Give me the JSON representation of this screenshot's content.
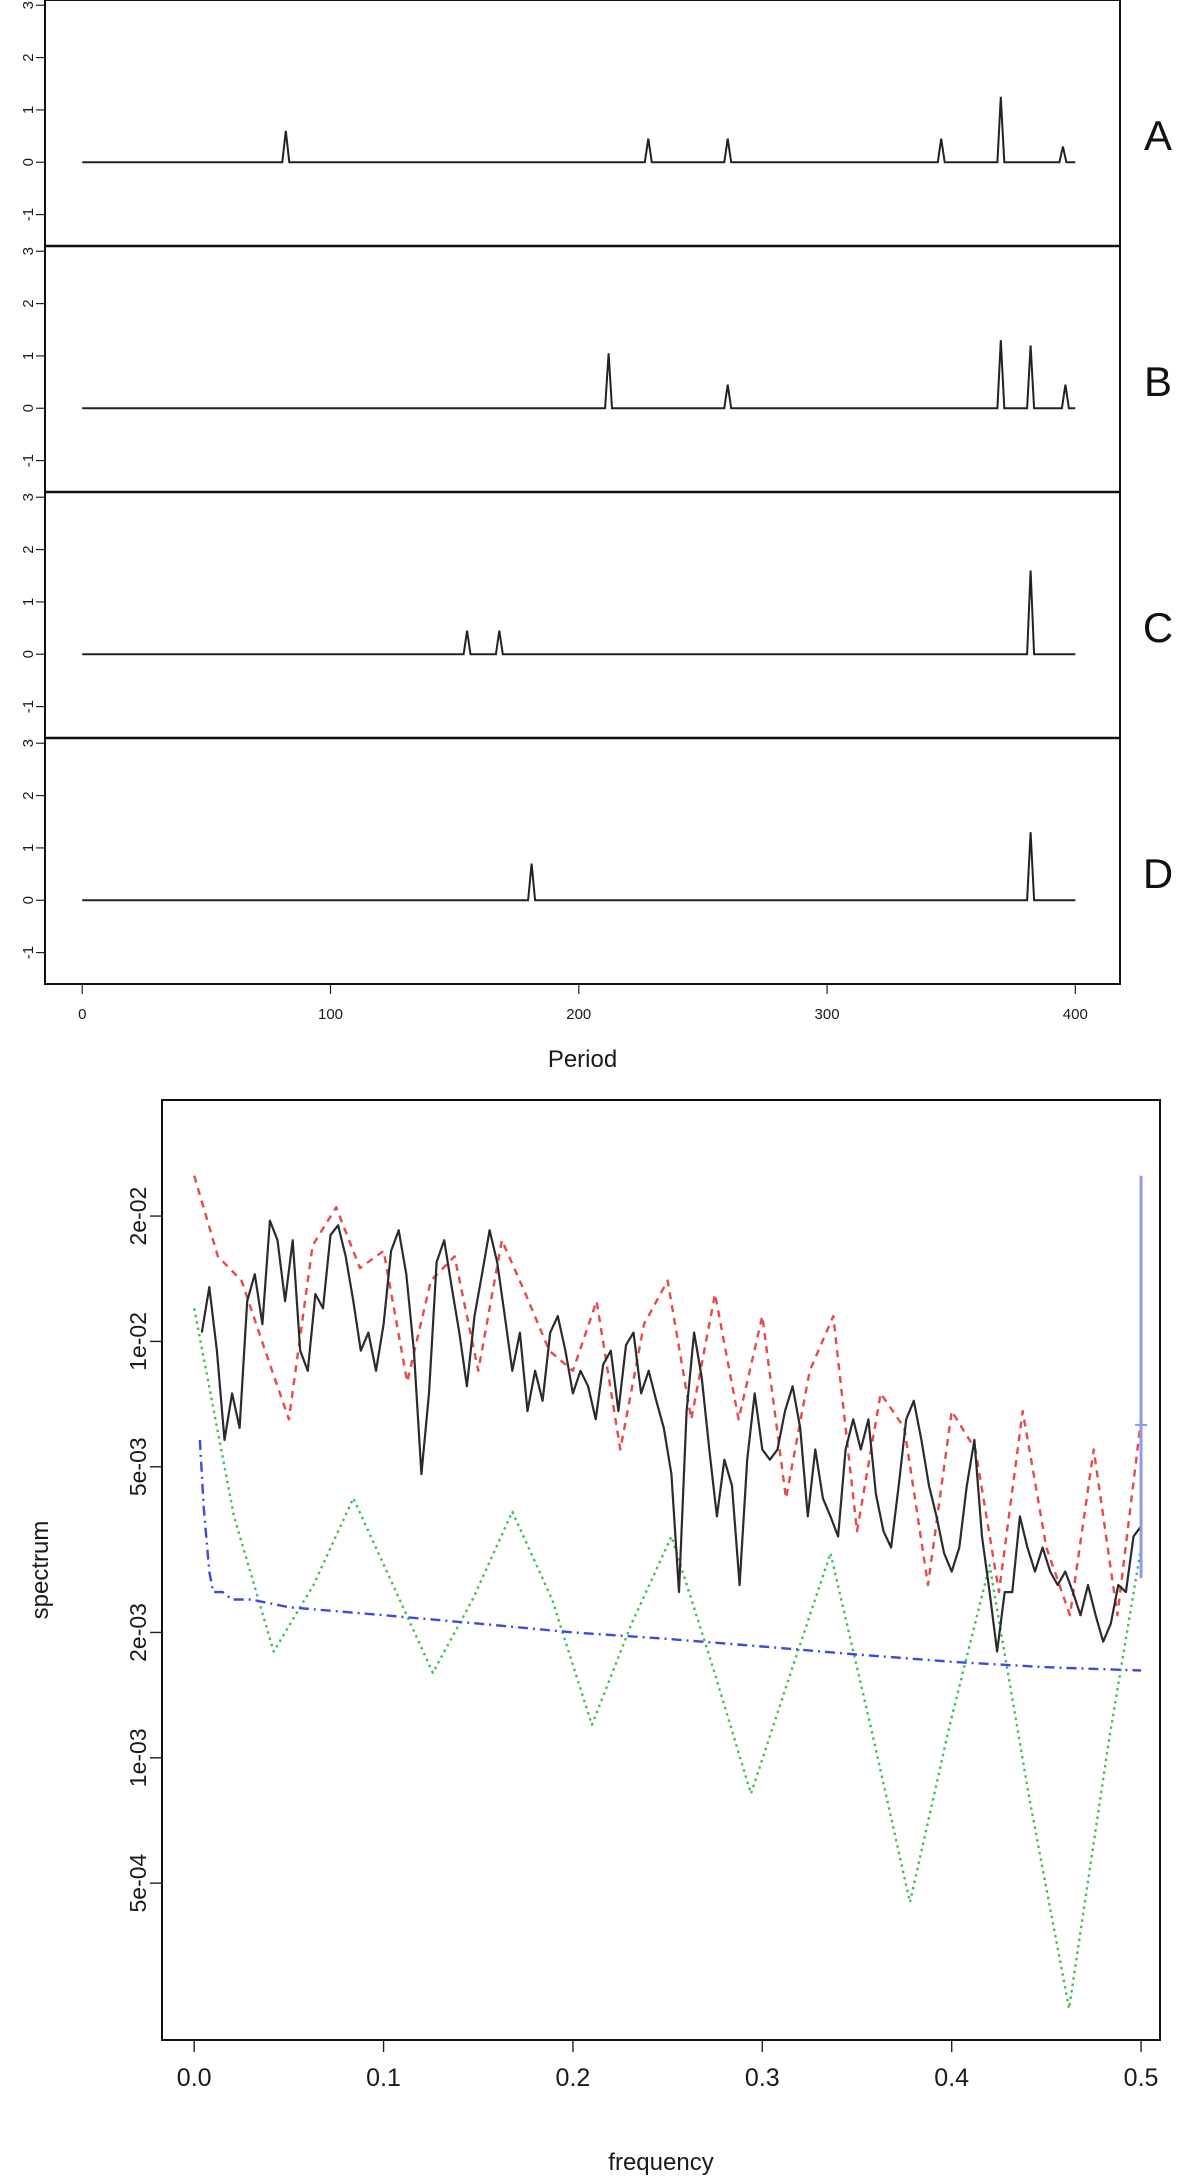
{
  "chart_data": [
    {
      "type": "line",
      "subtype": "stacked-panels",
      "xlabel": "Period",
      "xlim": [
        -15,
        418
      ],
      "x_ticks": [
        0,
        100,
        200,
        300,
        400
      ],
      "y_ticks": [
        -1,
        0,
        1,
        2,
        3
      ],
      "ylim": [
        -1.6,
        3.1
      ],
      "baseline_x_range": [
        0,
        400
      ],
      "grid": false,
      "colors": {
        "line": "#222222",
        "frame": "#111111"
      },
      "panels": [
        {
          "label": "A",
          "peaks": [
            {
              "x": 82,
              "y": 0.6
            },
            {
              "x": 228,
              "y": 0.45
            },
            {
              "x": 260,
              "y": 0.45
            },
            {
              "x": 346,
              "y": 0.45
            },
            {
              "x": 370,
              "y": 1.25
            },
            {
              "x": 395,
              "y": 0.3
            }
          ]
        },
        {
          "label": "B",
          "peaks": [
            {
              "x": 212,
              "y": 1.05
            },
            {
              "x": 260,
              "y": 0.45
            },
            {
              "x": 370,
              "y": 1.3
            },
            {
              "x": 382,
              "y": 1.2
            },
            {
              "x": 396,
              "y": 0.45
            }
          ]
        },
        {
          "label": "C",
          "peaks": [
            {
              "x": 155,
              "y": 0.45
            },
            {
              "x": 168,
              "y": 0.45
            },
            {
              "x": 382,
              "y": 1.6
            }
          ]
        },
        {
          "label": "D",
          "peaks": [
            {
              "x": 181,
              "y": 0.7
            },
            {
              "x": 382,
              "y": 1.3
            }
          ]
        }
      ]
    },
    {
      "type": "line",
      "scale_y": "log",
      "xlabel": "frequency",
      "ylabel": "spectrum",
      "xlim": [
        -0.017,
        0.51
      ],
      "ylim": [
        0.00021,
        0.038
      ],
      "x_ticks": [
        0.0,
        0.1,
        0.2,
        0.3,
        0.4,
        0.5
      ],
      "x_tick_labels": [
        "0.0",
        "0.1",
        "0.2",
        "0.3",
        "0.4",
        "0.5"
      ],
      "y_ticks": [
        0.0005,
        0.001,
        0.002,
        0.005,
        0.01,
        0.02
      ],
      "y_tick_labels": [
        "5e-04",
        "1e-03",
        "2e-03",
        "5e-03",
        "1e-02",
        "2e-02"
      ],
      "grid": false,
      "series": [
        {
          "key": "black",
          "color": "#2b2b2b",
          "style": "solid",
          "x": [
            0.004,
            0.008,
            0.012,
            0.016,
            0.02,
            0.024,
            0.028,
            0.032,
            0.036,
            0.04,
            0.044,
            0.048,
            0.052,
            0.056,
            0.06,
            0.064,
            0.068,
            0.072,
            0.076,
            0.08,
            0.084,
            0.088,
            0.092,
            0.096,
            0.1,
            0.104,
            0.108,
            0.112,
            0.116,
            0.12,
            0.124,
            0.128,
            0.132,
            0.136,
            0.14,
            0.144,
            0.148,
            0.152,
            0.156,
            0.16,
            0.164,
            0.168,
            0.172,
            0.176,
            0.18,
            0.184,
            0.188,
            0.192,
            0.196,
            0.2,
            0.204,
            0.208,
            0.212,
            0.216,
            0.22,
            0.224,
            0.228,
            0.232,
            0.236,
            0.24,
            0.244,
            0.248,
            0.252,
            0.256,
            0.26,
            0.264,
            0.268,
            0.272,
            0.276,
            0.28,
            0.284,
            0.288,
            0.292,
            0.296,
            0.3,
            0.304,
            0.308,
            0.312,
            0.316,
            0.32,
            0.324,
            0.328,
            0.332,
            0.336,
            0.34,
            0.344,
            0.348,
            0.352,
            0.356,
            0.36,
            0.364,
            0.368,
            0.372,
            0.376,
            0.38,
            0.384,
            0.388,
            0.392,
            0.396,
            0.4,
            0.404,
            0.408,
            0.412,
            0.416,
            0.42,
            0.424,
            0.428,
            0.432,
            0.436,
            0.44,
            0.444,
            0.448,
            0.452,
            0.456,
            0.46,
            0.464,
            0.468,
            0.472,
            0.476,
            0.48,
            0.484,
            0.488,
            0.492,
            0.496,
            0.5
          ],
          "y": [
            0.0105,
            0.0135,
            0.0095,
            0.0058,
            0.0075,
            0.0062,
            0.0125,
            0.0145,
            0.011,
            0.0195,
            0.0175,
            0.0125,
            0.0175,
            0.0095,
            0.0085,
            0.013,
            0.012,
            0.018,
            0.019,
            0.016,
            0.0125,
            0.0095,
            0.0105,
            0.0085,
            0.011,
            0.0165,
            0.0185,
            0.0145,
            0.0095,
            0.0048,
            0.0075,
            0.0155,
            0.0175,
            0.0135,
            0.0105,
            0.0078,
            0.0115,
            0.0145,
            0.0185,
            0.0155,
            0.0115,
            0.0085,
            0.0105,
            0.0068,
            0.0085,
            0.0072,
            0.0105,
            0.0115,
            0.0095,
            0.0075,
            0.0085,
            0.0078,
            0.0065,
            0.0088,
            0.0095,
            0.0068,
            0.0098,
            0.0105,
            0.0075,
            0.0085,
            0.0072,
            0.0062,
            0.0048,
            0.0025,
            0.0068,
            0.0105,
            0.0082,
            0.0055,
            0.0038,
            0.0052,
            0.0045,
            0.0026,
            0.0052,
            0.0075,
            0.0055,
            0.0052,
            0.0055,
            0.0068,
            0.0078,
            0.0062,
            0.0038,
            0.0055,
            0.0042,
            0.0038,
            0.0034,
            0.0055,
            0.0065,
            0.0055,
            0.0065,
            0.0043,
            0.0035,
            0.0032,
            0.0045,
            0.0065,
            0.0072,
            0.0058,
            0.0045,
            0.0038,
            0.0031,
            0.0028,
            0.0032,
            0.0045,
            0.0058,
            0.0034,
            0.0025,
            0.0018,
            0.0025,
            0.0025,
            0.0038,
            0.0032,
            0.0028,
            0.0032,
            0.0028,
            0.0026,
            0.0028,
            0.0025,
            0.0022,
            0.0026,
            0.0022,
            0.0019,
            0.0021,
            0.0026,
            0.0025,
            0.0034,
            0.0036
          ]
        },
        {
          "key": "red",
          "color": "#e8494a",
          "style": "dashed",
          "x": [
            0.0,
            0.0125,
            0.025,
            0.0375,
            0.05,
            0.0625,
            0.075,
            0.0875,
            0.1,
            0.1125,
            0.125,
            0.1375,
            0.15,
            0.1625,
            0.175,
            0.1875,
            0.2,
            0.2125,
            0.225,
            0.2375,
            0.25,
            0.2625,
            0.275,
            0.2875,
            0.3,
            0.3125,
            0.325,
            0.3375,
            0.35,
            0.3625,
            0.375,
            0.3875,
            0.4,
            0.4125,
            0.425,
            0.4375,
            0.45,
            0.4625,
            0.475,
            0.4875,
            0.5
          ],
          "y": [
            0.025,
            0.016,
            0.014,
            0.0095,
            0.0065,
            0.017,
            0.021,
            0.015,
            0.0165,
            0.008,
            0.014,
            0.016,
            0.0085,
            0.0175,
            0.013,
            0.0095,
            0.0085,
            0.0125,
            0.0055,
            0.011,
            0.014,
            0.0065,
            0.013,
            0.0065,
            0.0115,
            0.0042,
            0.0085,
            0.0115,
            0.0035,
            0.0075,
            0.0062,
            0.0026,
            0.0068,
            0.0055,
            0.0025,
            0.0068,
            0.0032,
            0.0022,
            0.0055,
            0.0022,
            0.0065
          ]
        },
        {
          "key": "green",
          "color": "#43bf5a",
          "style": "dotted",
          "x": [
            0.0,
            0.021,
            0.042,
            0.063,
            0.084,
            0.105,
            0.126,
            0.147,
            0.168,
            0.189,
            0.21,
            0.231,
            0.252,
            0.273,
            0.294,
            0.315,
            0.336,
            0.357,
            0.378,
            0.399,
            0.42,
            0.441,
            0.462,
            0.483,
            0.5
          ],
          "y": [
            0.012,
            0.0038,
            0.0018,
            0.0026,
            0.0042,
            0.0026,
            0.0016,
            0.0024,
            0.0039,
            0.0024,
            0.0012,
            0.0021,
            0.0034,
            0.0017,
            0.00082,
            0.0016,
            0.0031,
            0.0012,
            0.00045,
            0.0012,
            0.0029,
            0.0008,
            0.00025,
            0.0011,
            0.0032
          ]
        },
        {
          "key": "blue",
          "color": "#3d4ae0",
          "style": "dashdot",
          "x": [
            0.003,
            0.005,
            0.008,
            0.01,
            0.015,
            0.02,
            0.03,
            0.05,
            0.1,
            0.15,
            0.2,
            0.25,
            0.3,
            0.35,
            0.4,
            0.45,
            0.5
          ],
          "y": [
            0.0058,
            0.004,
            0.0028,
            0.0025,
            0.0025,
            0.0024,
            0.0024,
            0.0023,
            0.0022,
            0.0021,
            0.002,
            0.00193,
            0.00185,
            0.00177,
            0.0017,
            0.00165,
            0.00162
          ]
        }
      ],
      "bandwidth_bar": {
        "x": 0.5,
        "y_low": 0.0027,
        "y_high": 0.025,
        "y_mid": 0.0063,
        "color": "#8f99f2"
      }
    }
  ]
}
